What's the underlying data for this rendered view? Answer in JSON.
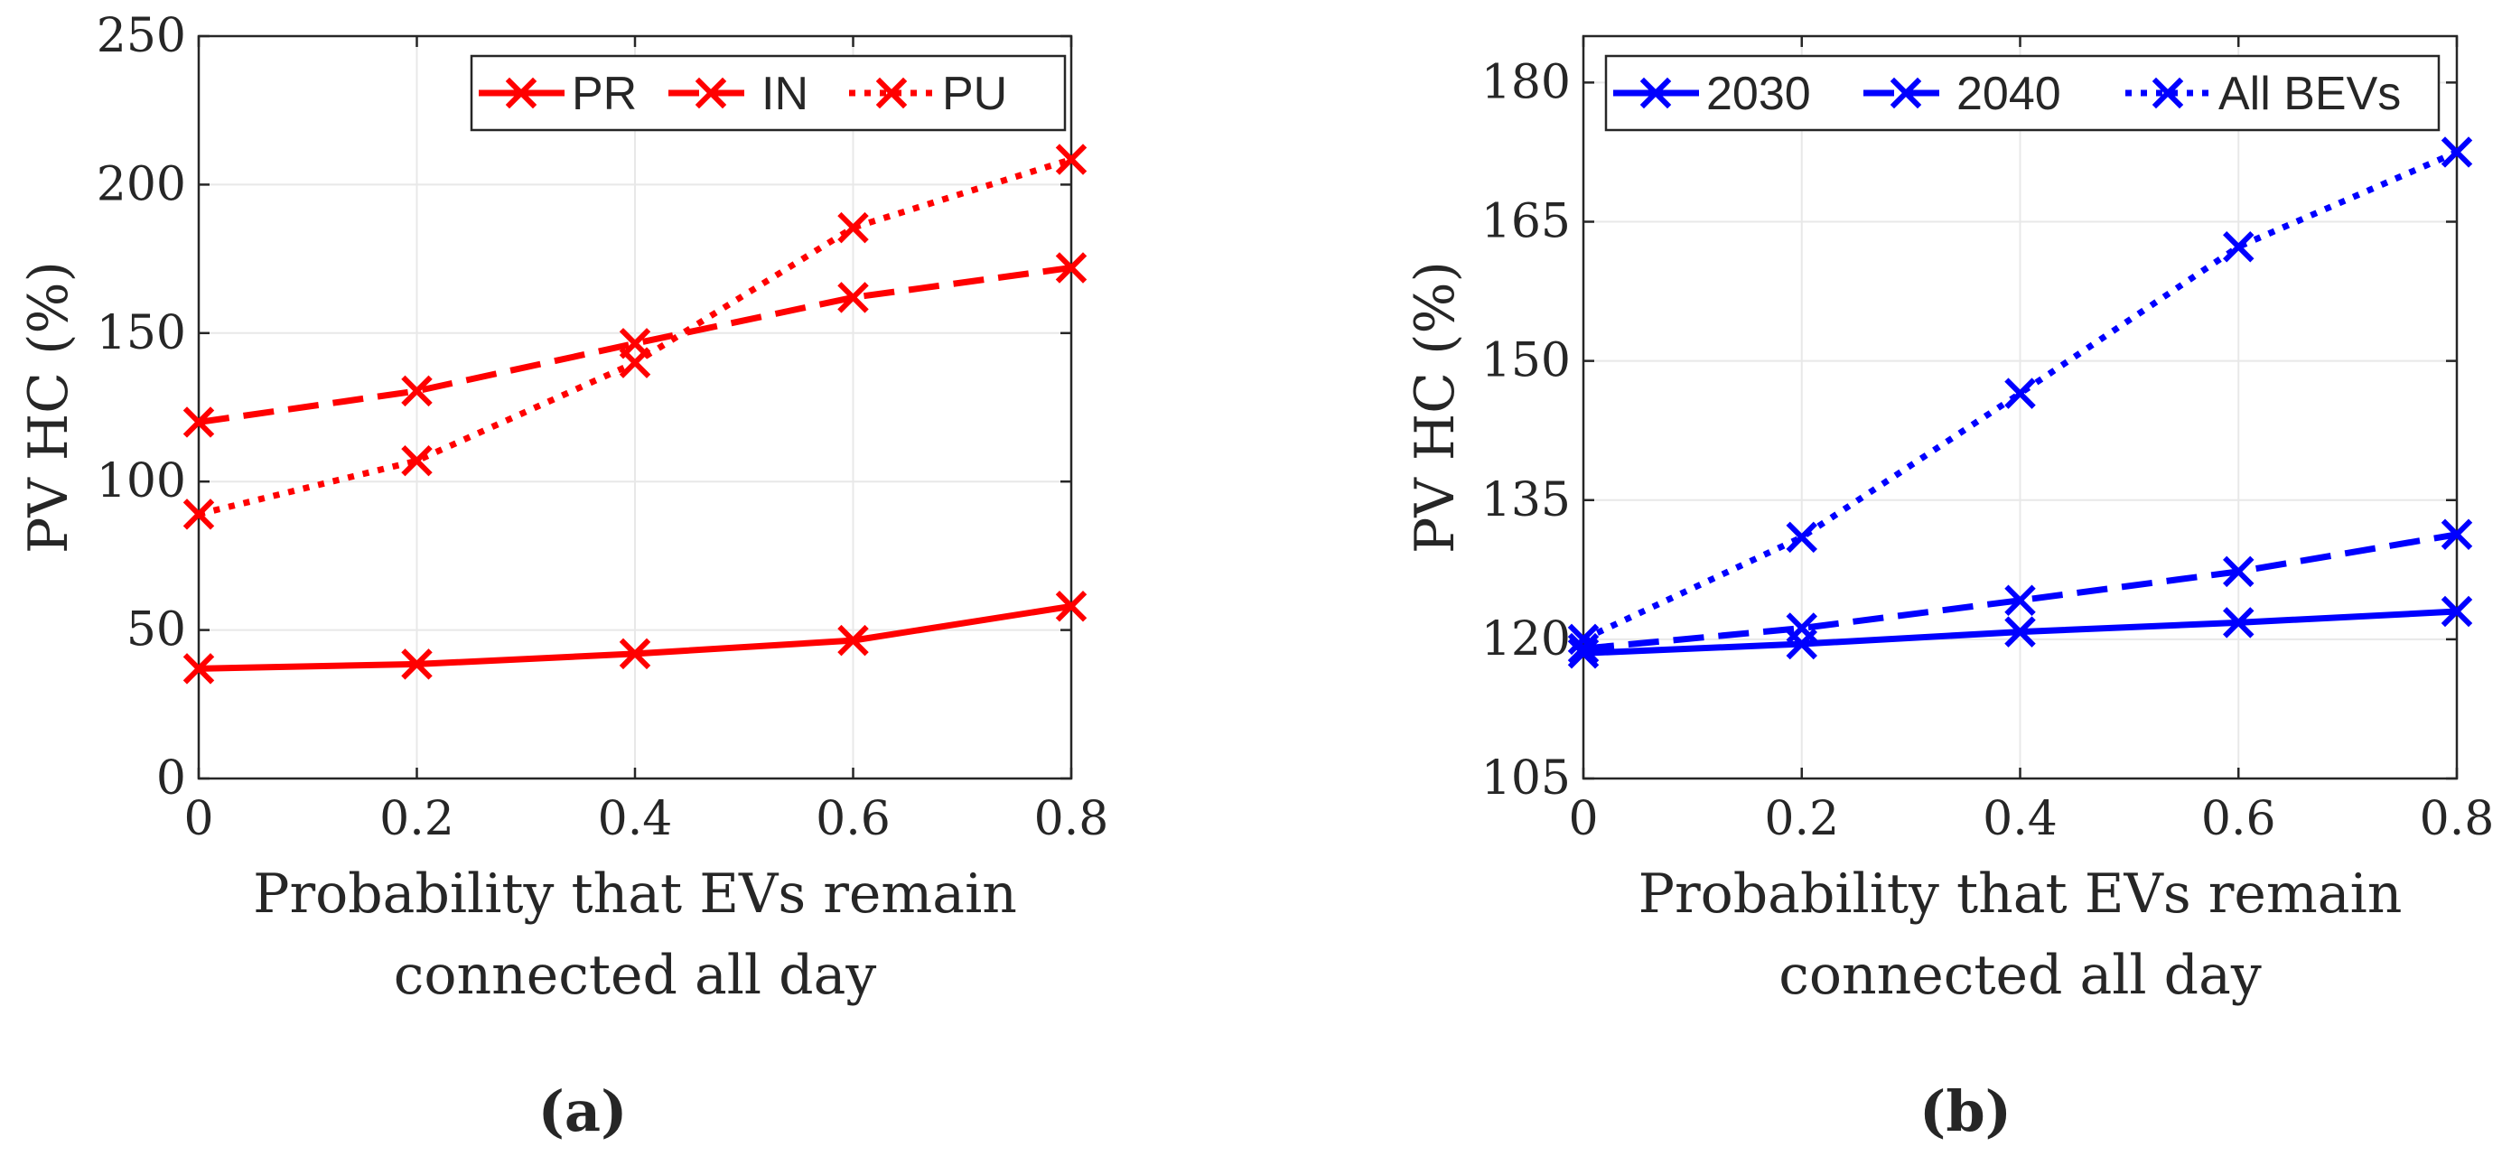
{
  "chart_data": [
    {
      "type": "line",
      "panel_label": "(a)",
      "title": "",
      "xlabel": [
        "Probability that EVs remain",
        "connected all day"
      ],
      "ylabel": "PV HC (%)",
      "x": [
        0,
        0.2,
        0.4,
        0.6,
        0.8
      ],
      "xlim": [
        0,
        0.8
      ],
      "ylim": [
        0,
        250
      ],
      "xticks": [
        0,
        0.2,
        0.4,
        0.6,
        0.8
      ],
      "xtick_labels": [
        "0",
        "0.2",
        "0.4",
        "0.6",
        "0.8"
      ],
      "yticks": [
        0,
        50,
        100,
        150,
        200,
        250
      ],
      "ytick_labels": [
        "0",
        "50",
        "100",
        "150",
        "200",
        "250"
      ],
      "grid": true,
      "legend_position": "top-right",
      "legend_orientation": "horizontal",
      "color": "#ff0000",
      "series": [
        {
          "name": "PR",
          "style": "solid",
          "marker": "x",
          "values": [
            37,
            38.5,
            42,
            46.5,
            58
          ]
        },
        {
          "name": "IN",
          "style": "dashed",
          "marker": "x",
          "values": [
            120,
            130.5,
            146.5,
            162,
            172
          ]
        },
        {
          "name": "PU",
          "style": "dotted",
          "marker": "x",
          "values": [
            89,
            107,
            140,
            185.5,
            208.5
          ]
        }
      ]
    },
    {
      "type": "line",
      "panel_label": "(b)",
      "title": "",
      "xlabel": [
        "Probability that EVs remain",
        "connected all day"
      ],
      "ylabel": "PV HC (%)",
      "x": [
        0,
        0.2,
        0.4,
        0.6,
        0.8
      ],
      "xlim": [
        0,
        0.8
      ],
      "ylim": [
        105,
        185
      ],
      "xticks": [
        0,
        0.2,
        0.4,
        0.6,
        0.8
      ],
      "xtick_labels": [
        "0",
        "0.2",
        "0.4",
        "0.6",
        "0.8"
      ],
      "yticks": [
        105,
        120,
        135,
        150,
        165,
        180
      ],
      "ytick_labels": [
        "105",
        "120",
        "135",
        "150",
        "165",
        "180"
      ],
      "grid": true,
      "legend_position": "top",
      "legend_orientation": "horizontal",
      "color": "#0000ff",
      "series": [
        {
          "name": "2030",
          "style": "solid",
          "marker": "x",
          "values": [
            118.5,
            119.5,
            120.8,
            121.8,
            123
          ]
        },
        {
          "name": "2040",
          "style": "dashed",
          "marker": "x",
          "values": [
            119,
            121.2,
            124.2,
            127.3,
            131.3
          ]
        },
        {
          "name": "All BEVs",
          "style": "dotted",
          "marker": "x",
          "values": [
            120,
            131,
            146.5,
            162.3,
            172.5
          ]
        }
      ]
    }
  ]
}
